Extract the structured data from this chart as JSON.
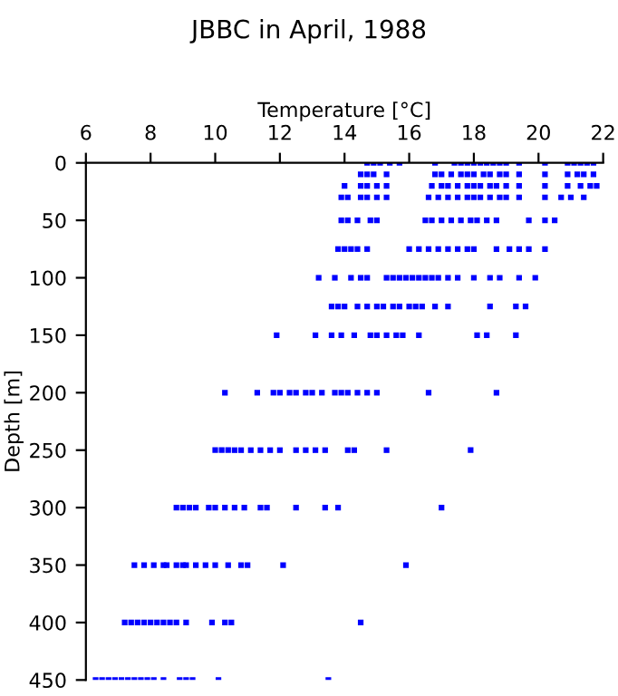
{
  "chart_data": {
    "type": "scatter",
    "title": "JBBC in April, 1988",
    "xlabel": "Temperature [°C]",
    "ylabel": "Depth [m]",
    "xlim": [
      6,
      22
    ],
    "xticks": [
      6,
      8,
      10,
      12,
      14,
      16,
      18,
      20,
      22
    ],
    "ylim": [
      450,
      0
    ],
    "yticks": [
      0,
      50,
      100,
      150,
      200,
      250,
      300,
      350,
      400,
      450
    ],
    "marker": "square",
    "grid": false,
    "legend": false,
    "series": [
      {
        "color": "#0000ff",
        "x": [
          14.7,
          14.9,
          15.1,
          15.4,
          15.7,
          16.8,
          17.4,
          17.6,
          17.8,
          18.0,
          18.2,
          18.4,
          18.6,
          18.8,
          19.0,
          19.4,
          20.2,
          20.9,
          21.1,
          21.3,
          21.5,
          21.7
        ],
        "values": [
          0,
          0,
          0,
          0,
          0,
          0,
          0,
          0,
          0,
          0,
          0,
          0,
          0,
          0,
          0,
          0,
          0,
          0,
          0,
          0,
          0,
          0
        ]
      },
      {
        "color": "#0000ff",
        "x": [
          14.5,
          14.7,
          14.9,
          15.3,
          16.8,
          17.0,
          17.3,
          17.6,
          17.8,
          18.0,
          18.3,
          18.5,
          18.8,
          19.0,
          19.4,
          20.2,
          20.9,
          21.2,
          21.4,
          21.7
        ],
        "values": [
          10,
          10,
          10,
          10,
          10,
          10,
          10,
          10,
          10,
          10,
          10,
          10,
          10,
          10,
          10,
          10,
          10,
          10,
          10,
          10
        ]
      },
      {
        "color": "#0000ff",
        "x": [
          14.0,
          14.5,
          14.7,
          15.0,
          15.3,
          16.7,
          17.0,
          17.2,
          17.5,
          17.8,
          18.0,
          18.2,
          18.5,
          18.7,
          19.0,
          19.4,
          20.2,
          20.9,
          21.3,
          21.6,
          21.8
        ],
        "values": [
          20,
          20,
          20,
          20,
          20,
          20,
          20,
          20,
          20,
          20,
          20,
          20,
          20,
          20,
          20,
          20,
          20,
          20,
          20,
          20,
          20
        ]
      },
      {
        "color": "#0000ff",
        "x": [
          13.9,
          14.1,
          14.5,
          14.7,
          15.0,
          15.3,
          16.6,
          16.9,
          17.2,
          17.5,
          17.8,
          18.0,
          18.2,
          18.5,
          18.8,
          19.0,
          19.4,
          20.2,
          20.7,
          21.0,
          21.4
        ],
        "values": [
          30,
          30,
          30,
          30,
          30,
          30,
          30,
          30,
          30,
          30,
          30,
          30,
          30,
          30,
          30,
          30,
          30,
          30,
          30,
          30,
          30
        ]
      },
      {
        "color": "#0000ff",
        "x": [
          13.9,
          14.1,
          14.4,
          14.8,
          15.0,
          16.5,
          16.7,
          17.0,
          17.3,
          17.6,
          17.9,
          18.1,
          18.4,
          18.7,
          19.7,
          20.2,
          20.5
        ],
        "values": [
          50,
          50,
          50,
          50,
          50,
          50,
          50,
          50,
          50,
          50,
          50,
          50,
          50,
          50,
          50,
          50,
          50
        ]
      },
      {
        "color": "#0000ff",
        "x": [
          13.8,
          14.0,
          14.2,
          14.4,
          14.7,
          16.0,
          16.3,
          16.6,
          16.9,
          17.2,
          17.5,
          17.8,
          18.0,
          18.7,
          19.1,
          19.4,
          19.7,
          20.2
        ],
        "values": [
          75,
          75,
          75,
          75,
          75,
          75,
          75,
          75,
          75,
          75,
          75,
          75,
          75,
          75,
          75,
          75,
          75,
          75
        ]
      },
      {
        "color": "#0000ff",
        "x": [
          13.2,
          13.7,
          14.2,
          14.5,
          14.7,
          15.3,
          15.5,
          15.7,
          15.9,
          16.1,
          16.3,
          16.5,
          16.7,
          16.9,
          17.2,
          17.5,
          18.0,
          18.5,
          18.8,
          19.4,
          19.9
        ],
        "values": [
          100,
          100,
          100,
          100,
          100,
          100,
          100,
          100,
          100,
          100,
          100,
          100,
          100,
          100,
          100,
          100,
          100,
          100,
          100,
          100,
          100
        ]
      },
      {
        "color": "#0000ff",
        "x": [
          13.6,
          13.8,
          14.0,
          14.4,
          14.7,
          15.0,
          15.2,
          15.5,
          15.7,
          16.0,
          16.2,
          16.4,
          16.8,
          17.2,
          18.5,
          19.3,
          19.6
        ],
        "values": [
          125,
          125,
          125,
          125,
          125,
          125,
          125,
          125,
          125,
          125,
          125,
          125,
          125,
          125,
          125,
          125,
          125
        ]
      },
      {
        "color": "#0000ff",
        "x": [
          11.9,
          13.1,
          13.6,
          13.9,
          14.3,
          14.8,
          15.0,
          15.3,
          15.6,
          15.8,
          16.3,
          18.1,
          18.4,
          19.3
        ],
        "values": [
          150,
          150,
          150,
          150,
          150,
          150,
          150,
          150,
          150,
          150,
          150,
          150,
          150,
          150
        ]
      },
      {
        "color": "#0000ff",
        "x": [
          10.3,
          11.3,
          11.8,
          12.0,
          12.3,
          12.5,
          12.8,
          13.0,
          13.3,
          13.7,
          13.9,
          14.1,
          14.4,
          14.7,
          15.0,
          16.6,
          18.7
        ],
        "values": [
          200,
          200,
          200,
          200,
          200,
          200,
          200,
          200,
          200,
          200,
          200,
          200,
          200,
          200,
          200,
          200,
          200
        ]
      },
      {
        "color": "#0000ff",
        "x": [
          10.0,
          10.2,
          10.4,
          10.6,
          10.8,
          11.1,
          11.4,
          11.7,
          12.0,
          12.5,
          12.8,
          13.1,
          13.4,
          14.1,
          14.3,
          15.3,
          17.9
        ],
        "values": [
          250,
          250,
          250,
          250,
          250,
          250,
          250,
          250,
          250,
          250,
          250,
          250,
          250,
          250,
          250,
          250,
          250
        ]
      },
      {
        "color": "#0000ff",
        "x": [
          8.8,
          9.0,
          9.2,
          9.4,
          9.8,
          10.0,
          10.3,
          10.6,
          10.9,
          11.4,
          11.6,
          12.5,
          13.4,
          13.8,
          17.0
        ],
        "values": [
          300,
          300,
          300,
          300,
          300,
          300,
          300,
          300,
          300,
          300,
          300,
          300,
          300,
          300,
          300
        ]
      },
      {
        "color": "#0000ff",
        "x": [
          7.5,
          7.8,
          8.1,
          8.4,
          8.5,
          8.8,
          9.0,
          9.1,
          9.4,
          9.7,
          10.0,
          10.4,
          10.8,
          11.0,
          12.1,
          15.9
        ],
        "values": [
          350,
          350,
          350,
          350,
          350,
          350,
          350,
          350,
          350,
          350,
          350,
          350,
          350,
          350,
          350,
          350
        ]
      },
      {
        "color": "#0000ff",
        "x": [
          7.2,
          7.4,
          7.6,
          7.8,
          8.0,
          8.2,
          8.4,
          8.6,
          8.8,
          9.1,
          9.9,
          10.3,
          10.5,
          14.5
        ],
        "values": [
          400,
          400,
          400,
          400,
          400,
          400,
          400,
          400,
          400,
          400,
          400,
          400,
          400,
          400
        ]
      },
      {
        "color": "#0000ff",
        "x": [
          6.3,
          6.5,
          6.7,
          6.9,
          7.1,
          7.3,
          7.5,
          7.7,
          7.9,
          8.1,
          8.4,
          8.9,
          9.1,
          9.3,
          10.1,
          13.5
        ],
        "values": [
          450,
          450,
          450,
          450,
          450,
          450,
          450,
          450,
          450,
          450,
          450,
          450,
          450,
          450,
          450,
          450
        ]
      }
    ]
  }
}
